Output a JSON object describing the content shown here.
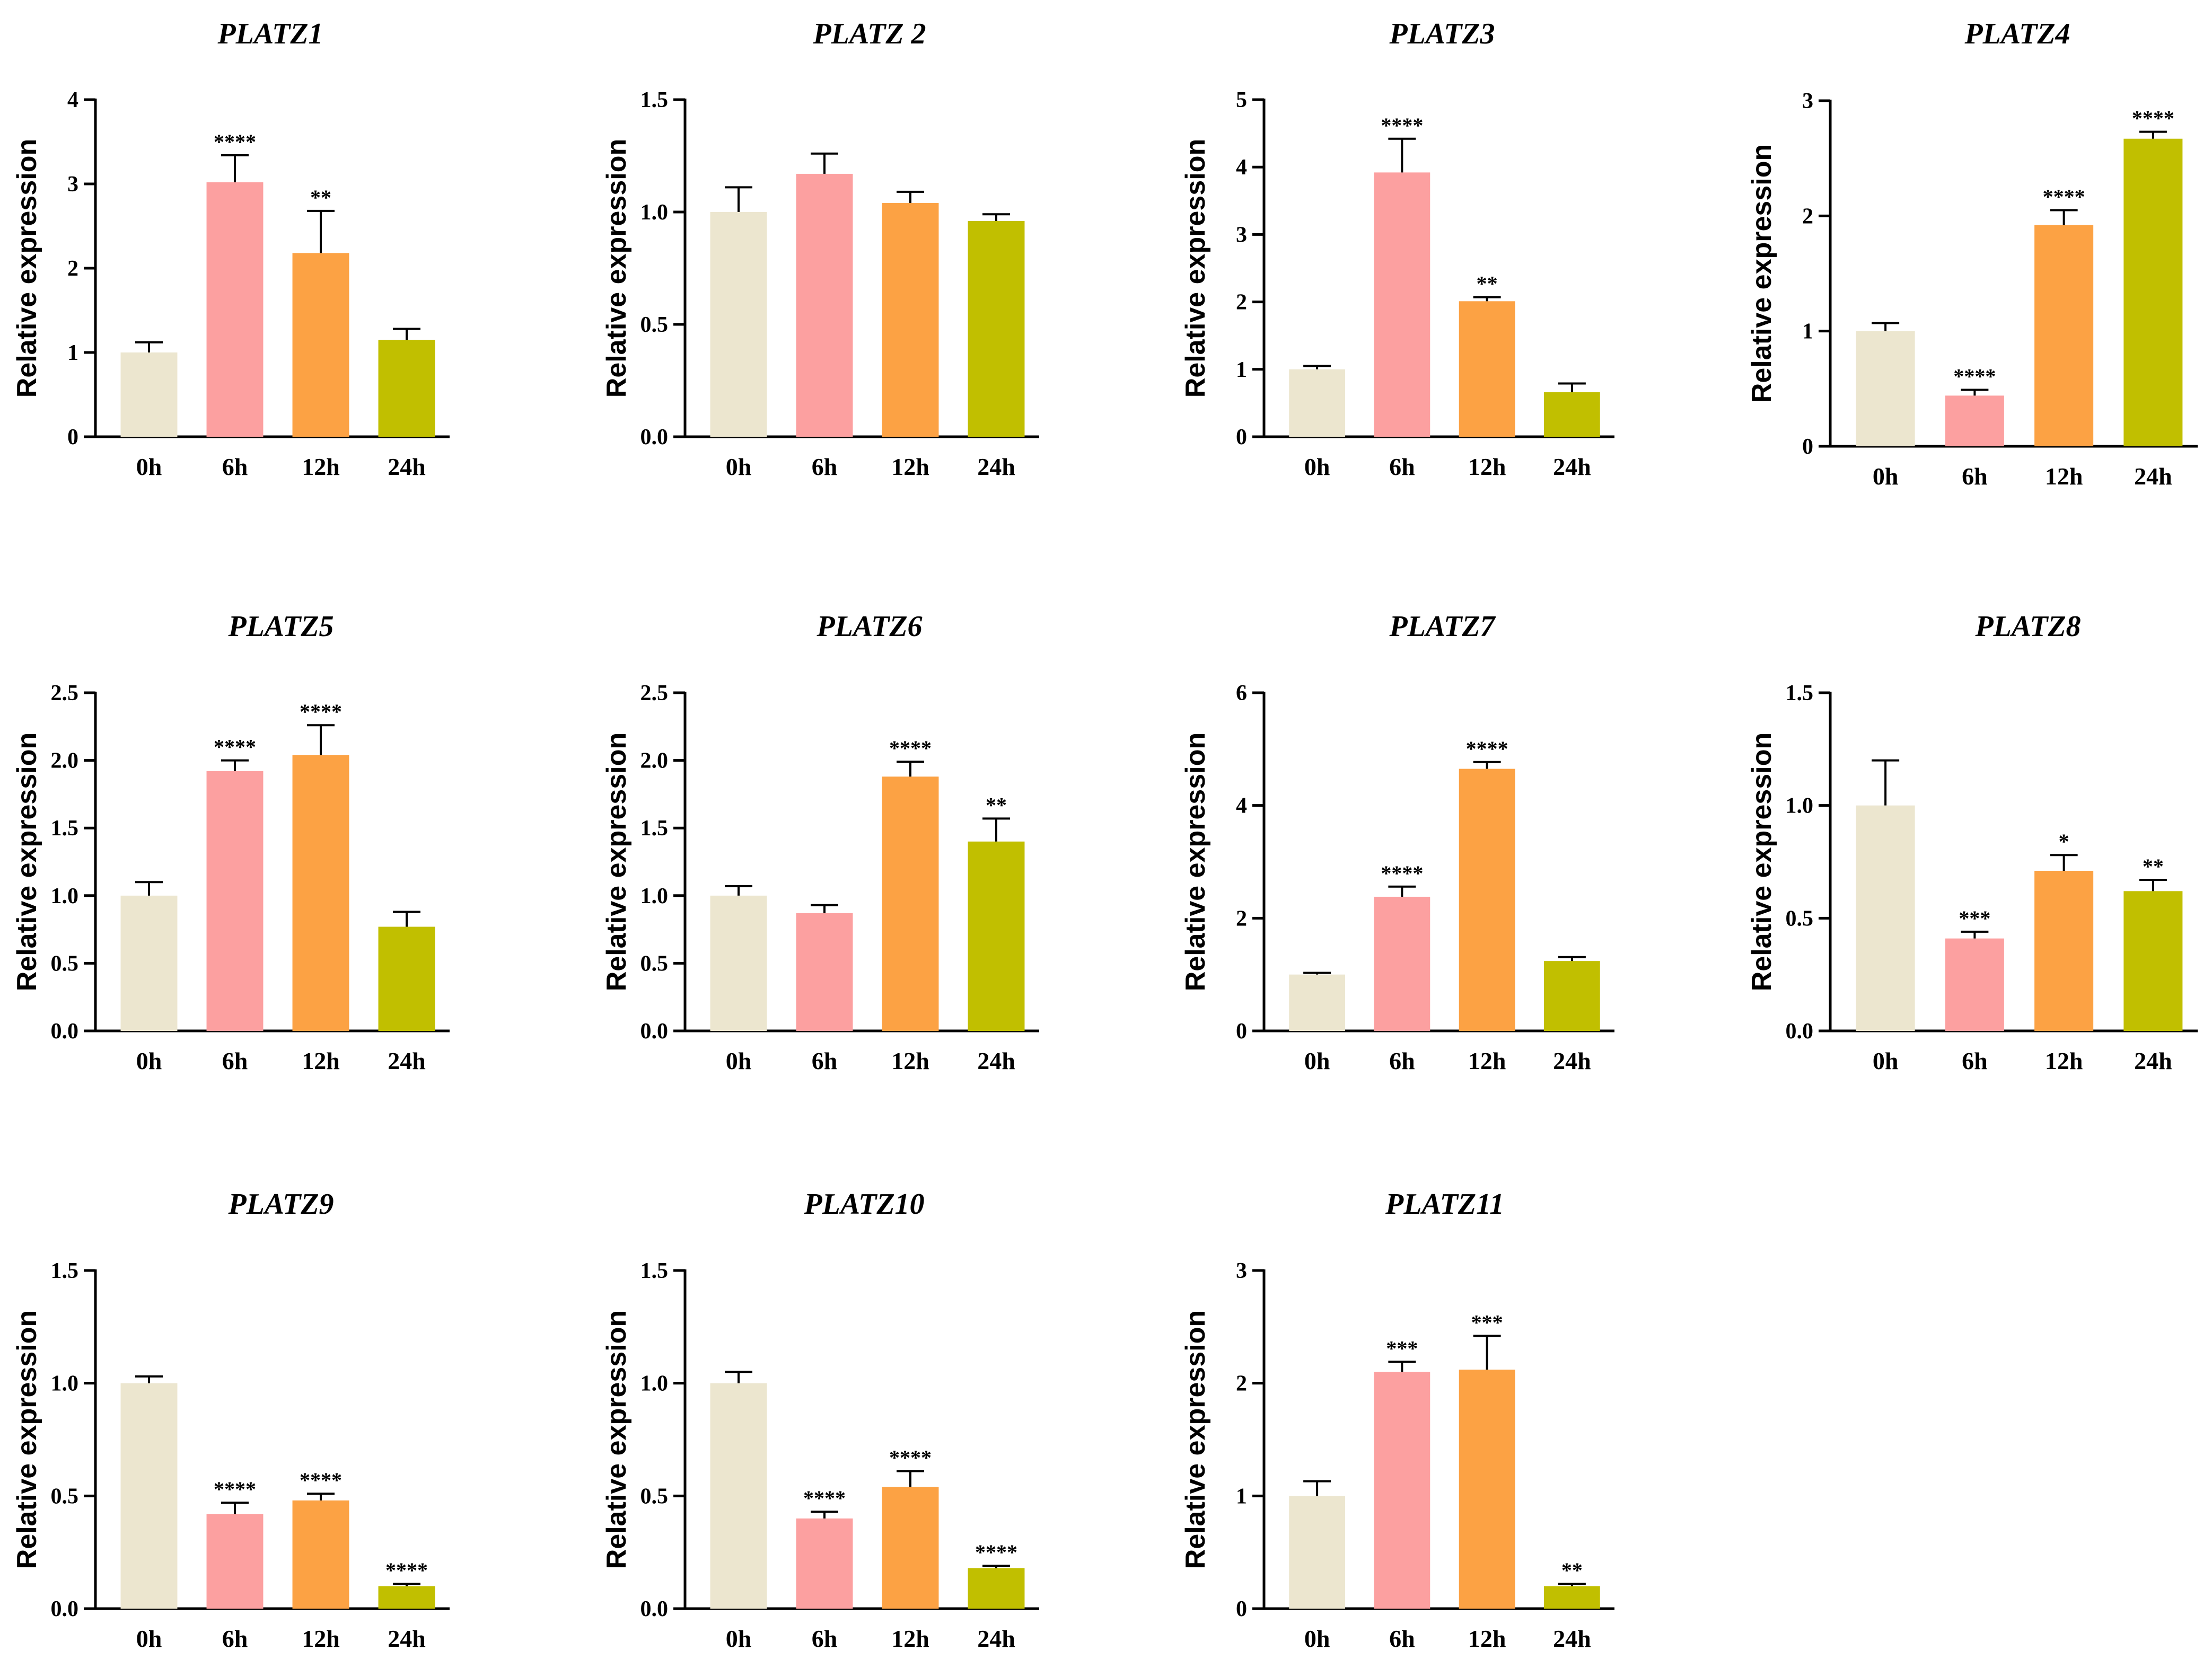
{
  "chart_data": [
    {
      "type": "bar",
      "title": "PLATZ1",
      "ylabel": "Relative expression",
      "xlabel": "",
      "categories": [
        "0h",
        "6h",
        "12h",
        "24h"
      ],
      "values": [
        1.0,
        3.02,
        2.18,
        1.15
      ],
      "errors": [
        0.12,
        0.32,
        0.5,
        0.13
      ],
      "significance": [
        "",
        "****",
        "**",
        ""
      ],
      "ylim": [
        0,
        4
      ],
      "yticks": [
        "0",
        "1",
        "2",
        "3",
        "4"
      ]
    },
    {
      "type": "bar",
      "title": "PLATZ 2",
      "ylabel": "Relative expression",
      "xlabel": "",
      "categories": [
        "0h",
        "6h",
        "12h",
        "24h"
      ],
      "values": [
        1.0,
        1.17,
        1.04,
        0.96
      ],
      "errors": [
        0.11,
        0.09,
        0.05,
        0.03
      ],
      "significance": [
        "",
        "",
        "",
        ""
      ],
      "ylim": [
        0,
        1.5
      ],
      "yticks": [
        "0.0",
        "0.5",
        "1.0",
        "1.5"
      ]
    },
    {
      "type": "bar",
      "title": "PLATZ3",
      "ylabel": "Relative expression",
      "xlabel": "",
      "categories": [
        "0h",
        "6h",
        "12h",
        "24h"
      ],
      "values": [
        1.0,
        3.92,
        2.01,
        0.66
      ],
      "errors": [
        0.05,
        0.5,
        0.06,
        0.13
      ],
      "significance": [
        "",
        "****",
        "**",
        ""
      ],
      "ylim": [
        0,
        5
      ],
      "yticks": [
        "0",
        "1",
        "2",
        "3",
        "4",
        "5"
      ]
    },
    {
      "type": "bar",
      "title": "PLATZ4",
      "ylabel": "Relative expression",
      "xlabel": "",
      "categories": [
        "0h",
        "6h",
        "12h",
        "24h"
      ],
      "values": [
        1.0,
        0.44,
        1.92,
        2.67
      ],
      "errors": [
        0.07,
        0.05,
        0.13,
        0.06
      ],
      "significance": [
        "",
        "****",
        "****",
        "****"
      ],
      "ylim": [
        0,
        3
      ],
      "yticks": [
        "0",
        "1",
        "2",
        "3"
      ]
    },
    {
      "type": "bar",
      "title": "PLATZ5",
      "ylabel": "Relative expression",
      "xlabel": "",
      "categories": [
        "0h",
        "6h",
        "12h",
        "24h"
      ],
      "values": [
        1.0,
        1.92,
        2.04,
        0.77
      ],
      "errors": [
        0.1,
        0.08,
        0.22,
        0.11
      ],
      "significance": [
        "",
        "****",
        "****",
        ""
      ],
      "ylim": [
        0,
        2.5
      ],
      "yticks": [
        "0.0",
        "0.5",
        "1.0",
        "1.5",
        "2.0",
        "2.5"
      ]
    },
    {
      "type": "bar",
      "title": "PLATZ6",
      "ylabel": "Relative expression",
      "xlabel": "",
      "categories": [
        "0h",
        "6h",
        "12h",
        "24h"
      ],
      "values": [
        1.0,
        0.87,
        1.88,
        1.4
      ],
      "errors": [
        0.07,
        0.06,
        0.11,
        0.17
      ],
      "significance": [
        "",
        "",
        "****",
        "**"
      ],
      "ylim": [
        0,
        2.5
      ],
      "yticks": [
        "0.0",
        "0.5",
        "1.0",
        "1.5",
        "2.0",
        "2.5"
      ]
    },
    {
      "type": "bar",
      "title": "PLATZ7",
      "ylabel": "Relative expression",
      "xlabel": "",
      "categories": [
        "0h",
        "6h",
        "12h",
        "24h"
      ],
      "values": [
        1.0,
        2.38,
        4.65,
        1.24
      ],
      "errors": [
        0.03,
        0.18,
        0.12,
        0.07
      ],
      "significance": [
        "",
        "****",
        "****",
        ""
      ],
      "ylim": [
        0,
        6
      ],
      "yticks": [
        "0",
        "2",
        "4",
        "6"
      ]
    },
    {
      "type": "bar",
      "title": "PLATZ8",
      "ylabel": "Relative expression",
      "xlabel": "",
      "categories": [
        "0h",
        "6h",
        "12h",
        "24h"
      ],
      "values": [
        1.0,
        0.41,
        0.71,
        0.62
      ],
      "errors": [
        0.2,
        0.03,
        0.07,
        0.05
      ],
      "significance": [
        "",
        "***",
        "*",
        "**"
      ],
      "ylim": [
        0,
        1.5
      ],
      "yticks": [
        "0.0",
        "0.5",
        "1.0",
        "1.5"
      ]
    },
    {
      "type": "bar",
      "title": "PLATZ9",
      "ylabel": "Relative expression",
      "xlabel": "",
      "categories": [
        "0h",
        "6h",
        "12h",
        "24h"
      ],
      "values": [
        1.0,
        0.42,
        0.48,
        0.1
      ],
      "errors": [
        0.03,
        0.05,
        0.03,
        0.01
      ],
      "significance": [
        "",
        "****",
        "****",
        "****"
      ],
      "ylim": [
        0,
        1.5
      ],
      "yticks": [
        "0.0",
        "0.5",
        "1.0",
        "1.5"
      ]
    },
    {
      "type": "bar",
      "title": "PLATZ10",
      "ylabel": "Relative expression",
      "xlabel": "",
      "categories": [
        "0h",
        "6h",
        "12h",
        "24h"
      ],
      "values": [
        1.0,
        0.4,
        0.54,
        0.18
      ],
      "errors": [
        0.05,
        0.03,
        0.07,
        0.01
      ],
      "significance": [
        "",
        "****",
        "****",
        "****"
      ],
      "ylim": [
        0,
        1.5
      ],
      "yticks": [
        "0.0",
        "0.5",
        "1.0",
        "1.5"
      ]
    },
    {
      "type": "bar",
      "title": "PLATZ11",
      "ylabel": "Relative expression",
      "xlabel": "",
      "categories": [
        "0h",
        "6h",
        "12h",
        "24h"
      ],
      "values": [
        1.0,
        2.1,
        2.12,
        0.2
      ],
      "errors": [
        0.13,
        0.09,
        0.3,
        0.02
      ],
      "significance": [
        "",
        "***",
        "***",
        "**"
      ],
      "ylim": [
        0,
        3
      ],
      "yticks": [
        "0",
        "1",
        "2",
        "3"
      ]
    }
  ],
  "bar_colors": [
    "#ece6cf",
    "#fca0a0",
    "#fca244",
    "#c1bf00"
  ]
}
